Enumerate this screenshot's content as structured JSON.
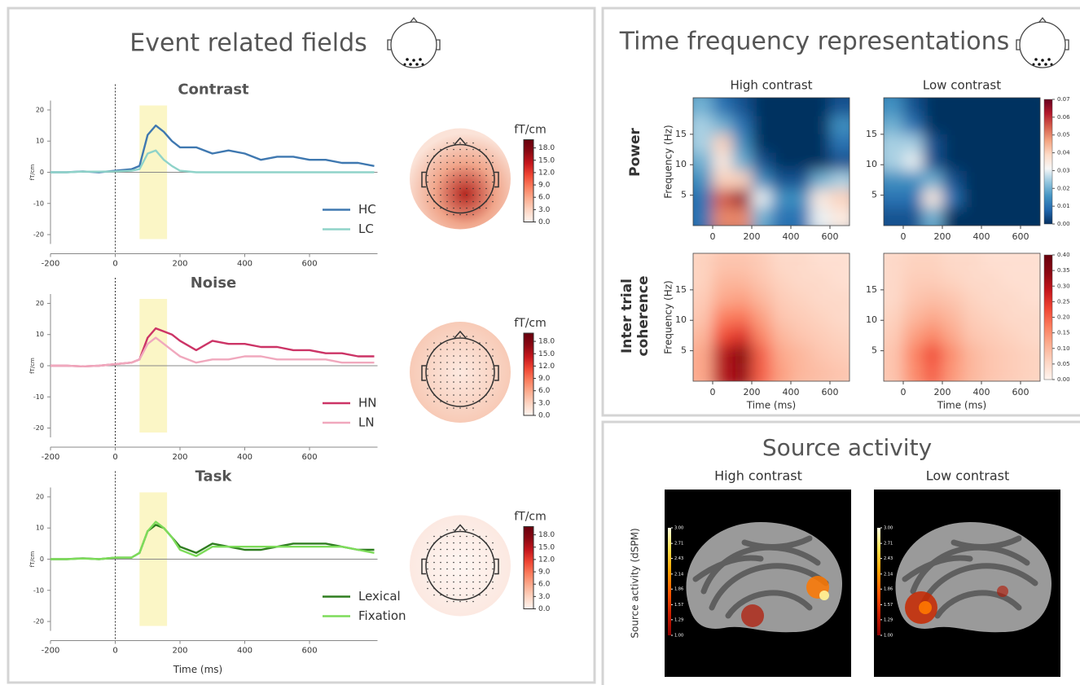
{
  "panels": {
    "erf": {
      "title": "Event related fields"
    },
    "tfr": {
      "title": "Time frequency representations"
    },
    "source": {
      "title": "Source activity",
      "ylabel": "Source activity (dSPM)",
      "conditions": [
        "High contrast",
        "Low contrast"
      ],
      "colormap": "hot",
      "colorbar": {
        "zlim": [
          1,
          3
        ],
        "ticks": [
          {
            "value": 1,
            "label": "1.00"
          },
          {
            "value": 1.29,
            "label": "1.29"
          },
          {
            "value": 1.57,
            "label": "1.57"
          },
          {
            "value": 1.86,
            "label": "1.86"
          },
          {
            "value": 2.14,
            "label": "2.14"
          },
          {
            "value": 2.43,
            "label": "2.43"
          },
          {
            "value": 2.71,
            "label": "2.71"
          },
          {
            "value": 3,
            "label": "3.00"
          }
        ]
      }
    }
  },
  "chart_data": [
    {
      "type": "line",
      "title": "Contrast",
      "ylabel": "fT/cm",
      "x": [
        -200,
        -150,
        -100,
        -50,
        0,
        50,
        75,
        100,
        125,
        150,
        175,
        200,
        250,
        300,
        350,
        400,
        450,
        500,
        550,
        600,
        650,
        700,
        750,
        800
      ],
      "series": [
        {
          "name": "HC",
          "color": "#3f78b0",
          "values": [
            0,
            0,
            0.3,
            0,
            0.5,
            1,
            2,
            12,
            15,
            13,
            10,
            8,
            8,
            6,
            7,
            6,
            4,
            5,
            5,
            4,
            4,
            3,
            3,
            2
          ]
        },
        {
          "name": "LC",
          "color": "#8fd3c9",
          "values": [
            0,
            0,
            0.2,
            0.2,
            0.3,
            0.5,
            1,
            6,
            7,
            4,
            2,
            0.5,
            0,
            0,
            0,
            0,
            0,
            0,
            0,
            0,
            0,
            0,
            0,
            0
          ]
        }
      ],
      "xlim": [
        -200,
        810
      ],
      "ylim": [
        -23,
        23
      ],
      "xticks": [
        -200,
        0,
        200,
        400,
        600
      ],
      "yticks": [
        -20,
        -10,
        0,
        10,
        20
      ],
      "highlight": [
        75,
        160
      ],
      "legend": "lower right",
      "topomap_colorbar": {
        "label": "fT/cm",
        "zlim": [
          0,
          20
        ],
        "ticks": [
          {
            "value": 0,
            "label": "0.0"
          },
          {
            "value": 3,
            "label": "3.0"
          },
          {
            "value": 6,
            "label": "6.0"
          },
          {
            "value": 9,
            "label": "9.0"
          },
          {
            "value": 12,
            "label": "12.0"
          },
          {
            "value": 15,
            "label": "15.0"
          },
          {
            "value": 18,
            "label": "18.0"
          }
        ]
      }
    },
    {
      "type": "line",
      "title": "Noise",
      "ylabel": "fT/cm",
      "x": [
        -200,
        -150,
        -100,
        -50,
        0,
        50,
        75,
        100,
        125,
        150,
        175,
        200,
        250,
        300,
        350,
        400,
        450,
        500,
        550,
        600,
        650,
        700,
        750,
        800
      ],
      "series": [
        {
          "name": "HN",
          "color": "#cc3466",
          "values": [
            0,
            0,
            -0.2,
            0,
            0.5,
            1,
            2,
            9,
            12,
            11,
            10,
            8,
            5,
            8,
            7,
            7,
            6,
            6,
            5,
            5,
            4,
            4,
            3,
            3
          ]
        },
        {
          "name": "LN",
          "color": "#f0a8bd",
          "values": [
            0,
            0,
            -0.2,
            0,
            0.5,
            1,
            2,
            7,
            9,
            7,
            5,
            3,
            1,
            2,
            2,
            3,
            3,
            2,
            2,
            2,
            2,
            1,
            1,
            1
          ]
        }
      ],
      "xlim": [
        -200,
        810
      ],
      "ylim": [
        -23,
        23
      ],
      "xticks": [
        -200,
        0,
        200,
        400,
        600
      ],
      "yticks": [
        -20,
        -10,
        0,
        10,
        20
      ],
      "highlight": [
        75,
        160
      ],
      "legend": "lower right",
      "topomap_colorbar": {
        "label": "fT/cm",
        "zlim": [
          0,
          20
        ],
        "ticks": [
          {
            "value": 0,
            "label": "0.0"
          },
          {
            "value": 3,
            "label": "3.0"
          },
          {
            "value": 6,
            "label": "6.0"
          },
          {
            "value": 9,
            "label": "9.0"
          },
          {
            "value": 12,
            "label": "12.0"
          },
          {
            "value": 15,
            "label": "15.0"
          },
          {
            "value": 18,
            "label": "18.0"
          }
        ]
      }
    },
    {
      "type": "line",
      "title": "Task",
      "ylabel": "fT/cm",
      "xlabel": "Time (ms)",
      "x": [
        -200,
        -150,
        -100,
        -50,
        0,
        50,
        75,
        100,
        125,
        150,
        175,
        200,
        250,
        300,
        350,
        400,
        450,
        500,
        550,
        600,
        650,
        700,
        750,
        800
      ],
      "series": [
        {
          "name": "Lexical",
          "color": "#2e7d1f",
          "values": [
            0,
            0,
            0.3,
            0,
            0.5,
            0.5,
            2,
            9,
            11,
            10,
            7,
            4,
            2,
            5,
            4,
            3,
            3,
            4,
            5,
            5,
            5,
            4,
            3,
            3
          ]
        },
        {
          "name": "Fixation",
          "color": "#7ddc5a",
          "values": [
            0,
            0,
            0.2,
            0,
            0.5,
            0.5,
            2,
            9,
            12,
            10,
            7,
            3,
            1,
            4,
            4,
            4,
            4,
            4,
            4,
            4,
            4,
            4,
            3,
            2
          ]
        }
      ],
      "xlim": [
        -200,
        810
      ],
      "ylim": [
        -23,
        23
      ],
      "xticks": [
        -200,
        0,
        200,
        400,
        600
      ],
      "yticks": [
        -20,
        -10,
        0,
        10,
        20
      ],
      "highlight": [
        75,
        160
      ],
      "legend": "lower right",
      "topomap_colorbar": {
        "label": "fT/cm",
        "zlim": [
          0,
          20
        ],
        "ticks": [
          {
            "value": 0,
            "label": "0.0"
          },
          {
            "value": 3,
            "label": "3.0"
          },
          {
            "value": 6,
            "label": "6.0"
          },
          {
            "value": 9,
            "label": "9.0"
          },
          {
            "value": 12,
            "label": "12.0"
          },
          {
            "value": 15,
            "label": "15.0"
          },
          {
            "value": 18,
            "label": "18.0"
          }
        ]
      }
    },
    {
      "type": "heatmap",
      "title": "High contrast",
      "row_label": "Power",
      "ylabel": "Frequency (Hz)",
      "colormap": "RdBu_r",
      "x": [
        -50,
        50,
        150,
        250,
        350,
        450,
        550,
        650
      ],
      "y": [
        1.5,
        4.5,
        7.5,
        10.5,
        13.5,
        16.5,
        19.5
      ],
      "z": [
        [
          0.01,
          0.05,
          0.05,
          0.02,
          0.01,
          0.01,
          0.03,
          0.035
        ],
        [
          0.01,
          0.055,
          0.065,
          0.03,
          0.015,
          0.015,
          0.035,
          0.04
        ],
        [
          0.015,
          0.04,
          0.04,
          0.015,
          0.005,
          0.005,
          0.02,
          0.025
        ],
        [
          0.02,
          0.035,
          0.02,
          0.005,
          0,
          0,
          0,
          0.005
        ],
        [
          0.025,
          0.04,
          0.015,
          0,
          0,
          0,
          0,
          0.01
        ],
        [
          0.025,
          0.02,
          0.01,
          0,
          0,
          0,
          0,
          0.015
        ],
        [
          0.02,
          0.01,
          0.005,
          0,
          0,
          0,
          0,
          0.005
        ]
      ],
      "xlim": [
        -100,
        700
      ],
      "ylim": [
        0,
        21
      ],
      "xticks": [
        0,
        200,
        400,
        600
      ],
      "yticks": [
        5,
        10,
        15
      ],
      "zlim": [
        0,
        0.07
      ]
    },
    {
      "type": "heatmap",
      "title": "Low contrast",
      "colormap": "RdBu_r",
      "x": [
        -50,
        50,
        150,
        250,
        350,
        450,
        550,
        650
      ],
      "y": [
        1.5,
        4.5,
        7.5,
        10.5,
        13.5,
        16.5,
        19.5
      ],
      "z": [
        [
          0.005,
          0.005,
          0.02,
          0,
          0,
          0,
          0,
          0
        ],
        [
          0.01,
          0.01,
          0.035,
          0.01,
          0,
          0,
          0,
          0
        ],
        [
          0.015,
          0.015,
          0.02,
          0.005,
          0,
          0,
          0,
          0
        ],
        [
          0.025,
          0.03,
          0.005,
          0,
          0,
          0,
          0,
          0
        ],
        [
          0.025,
          0.025,
          0.005,
          0,
          0,
          0,
          0,
          0
        ],
        [
          0.02,
          0.01,
          0,
          0,
          0,
          0,
          0,
          0
        ],
        [
          0.015,
          0.005,
          0,
          0,
          0,
          0,
          0,
          0
        ]
      ],
      "xlim": [
        -100,
        700
      ],
      "ylim": [
        0,
        21
      ],
      "xticks": [
        0,
        200,
        400,
        600
      ],
      "yticks": [
        5,
        10,
        15
      ],
      "zlim": [
        0,
        0.07
      ],
      "colorbar_ticks": [
        {
          "value": 0,
          "label": "0.00"
        },
        {
          "value": 0.01,
          "label": "0.01"
        },
        {
          "value": 0.02,
          "label": "0.02"
        },
        {
          "value": 0.03,
          "label": "0.03"
        },
        {
          "value": 0.04,
          "label": "0.04"
        },
        {
          "value": 0.05,
          "label": "0.05"
        },
        {
          "value": 0.06,
          "label": "0.06"
        },
        {
          "value": 0.07,
          "label": "0.07"
        }
      ]
    },
    {
      "type": "heatmap",
      "row_label": "Inter trial coherence",
      "ylabel": "Frequency (Hz)",
      "xlabel": "Time (ms)",
      "colormap": "Reds",
      "x": [
        -50,
        50,
        150,
        250,
        350,
        450,
        550,
        650
      ],
      "y": [
        1.5,
        4.5,
        7.5,
        10.5,
        13.5,
        16.5,
        19.5
      ],
      "z": [
        [
          0.12,
          0.3,
          0.33,
          0.2,
          0.13,
          0.1,
          0.09,
          0.08
        ],
        [
          0.12,
          0.3,
          0.35,
          0.2,
          0.12,
          0.1,
          0.08,
          0.07
        ],
        [
          0.1,
          0.22,
          0.25,
          0.16,
          0.1,
          0.08,
          0.07,
          0.06
        ],
        [
          0.08,
          0.17,
          0.18,
          0.13,
          0.08,
          0.07,
          0.06,
          0.05
        ],
        [
          0.07,
          0.12,
          0.13,
          0.1,
          0.07,
          0.06,
          0.05,
          0.05
        ],
        [
          0.06,
          0.1,
          0.1,
          0.08,
          0.06,
          0.05,
          0.05,
          0.04
        ],
        [
          0.06,
          0.08,
          0.08,
          0.07,
          0.05,
          0.05,
          0.04,
          0.04
        ]
      ],
      "xlim": [
        -100,
        700
      ],
      "ylim": [
        0,
        21
      ],
      "xticks": [
        0,
        200,
        400,
        600
      ],
      "yticks": [
        5,
        10,
        15
      ],
      "zlim": [
        0,
        0.4
      ]
    },
    {
      "type": "heatmap",
      "xlabel": "Time (ms)",
      "colormap": "Reds",
      "x": [
        -50,
        50,
        150,
        250,
        350,
        450,
        550,
        650
      ],
      "y": [
        1.5,
        4.5,
        7.5,
        10.5,
        13.5,
        16.5,
        19.5
      ],
      "z": [
        [
          0.08,
          0.15,
          0.2,
          0.14,
          0.1,
          0.08,
          0.07,
          0.06
        ],
        [
          0.08,
          0.16,
          0.22,
          0.15,
          0.1,
          0.08,
          0.07,
          0.06
        ],
        [
          0.07,
          0.13,
          0.16,
          0.12,
          0.08,
          0.07,
          0.06,
          0.05
        ],
        [
          0.06,
          0.1,
          0.12,
          0.1,
          0.07,
          0.06,
          0.05,
          0.05
        ],
        [
          0.05,
          0.08,
          0.09,
          0.08,
          0.06,
          0.05,
          0.05,
          0.04
        ],
        [
          0.05,
          0.07,
          0.07,
          0.06,
          0.05,
          0.05,
          0.04,
          0.04
        ],
        [
          0.05,
          0.06,
          0.06,
          0.05,
          0.05,
          0.04,
          0.04,
          0.04
        ]
      ],
      "xlim": [
        -100,
        700
      ],
      "ylim": [
        0,
        21
      ],
      "xticks": [
        0,
        200,
        400,
        600
      ],
      "yticks": [
        5,
        10,
        15
      ],
      "zlim": [
        0,
        0.4
      ],
      "colorbar_ticks": [
        {
          "value": 0,
          "label": "0.00"
        },
        {
          "value": 0.05,
          "label": "0.05"
        },
        {
          "value": 0.1,
          "label": "0.10"
        },
        {
          "value": 0.15,
          "label": "0.15"
        },
        {
          "value": 0.2,
          "label": "0.20"
        },
        {
          "value": 0.25,
          "label": "0.25"
        },
        {
          "value": 0.3,
          "label": "0.30"
        },
        {
          "value": 0.35,
          "label": "0.35"
        },
        {
          "value": 0.4,
          "label": "0.40"
        }
      ]
    }
  ]
}
